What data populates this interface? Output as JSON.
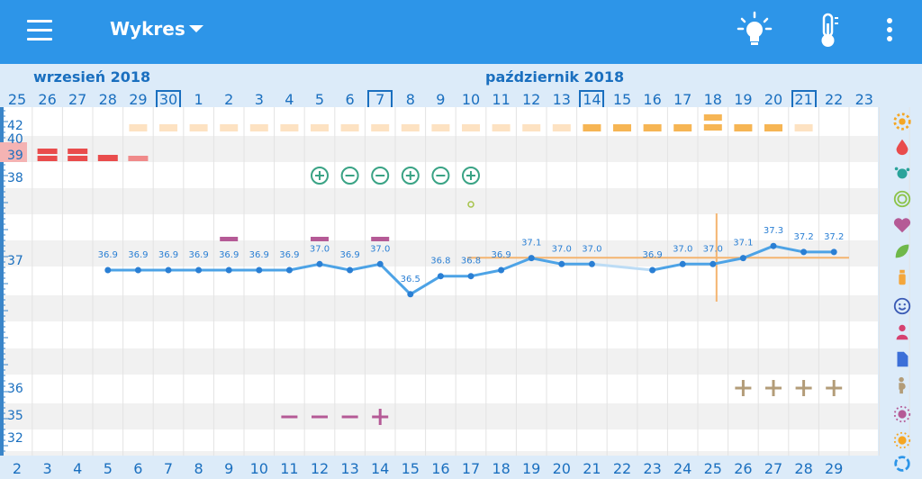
{
  "app_bar": {
    "title": "Wykres",
    "icons": [
      "menu-icon",
      "dropdown-caret-icon",
      "lightbulb-icon",
      "thermometer-icon",
      "more-vert-icon"
    ]
  },
  "chart": {
    "months": [
      {
        "label": "wrzesień 2018"
      },
      {
        "label": "październik 2018"
      }
    ],
    "dates_top": [
      "25",
      "26",
      "27",
      "28",
      "29",
      "30",
      "1",
      "2",
      "3",
      "4",
      "5",
      "6",
      "7",
      "8",
      "9",
      "10",
      "11",
      "12",
      "13",
      "14",
      "15",
      "16",
      "17",
      "18",
      "19",
      "20",
      "21",
      "22",
      "23"
    ],
    "boxed_dates": [
      "30",
      "7",
      "14",
      "21"
    ],
    "cycle_days_bottom": [
      "2",
      "3",
      "4",
      "5",
      "6",
      "7",
      "8",
      "9",
      "10",
      "11",
      "12",
      "13",
      "14",
      "15",
      "16",
      "17",
      "18",
      "19",
      "20",
      "21",
      "22",
      "23",
      "24",
      "25",
      "26",
      "27",
      "28",
      "29"
    ],
    "y_axis_labels": [
      "42",
      "40",
      "39",
      "38",
      "37",
      "36",
      "35",
      "32"
    ],
    "side_icons": [
      "flower-icon",
      "drop-icon",
      "splash-icon",
      "rings-icon",
      "heart-icon",
      "leaf-icon",
      "bottle-icon",
      "smiley-icon",
      "person-icon",
      "document-icon",
      "pregnant-icon",
      "virus-icon",
      "sun-icon",
      "cycle-icon"
    ],
    "colors": {
      "line": "#4da3e6",
      "point": "#2a7fd4",
      "coverline": "#f4b470",
      "bleeding": "#e94c4c",
      "mucus_light": "#fde2c2",
      "mucus_strong": "#f6b554",
      "test": "#3aa385",
      "lh": "#b55a96",
      "cross": "#b39c78"
    }
  },
  "chart_data": {
    "type": "line",
    "x": [
      "28",
      "29",
      "30",
      "1",
      "2",
      "3",
      "4",
      "5",
      "6",
      "7",
      "8",
      "9",
      "10",
      "11",
      "12",
      "13",
      "14",
      "16",
      "17",
      "18",
      "19",
      "20",
      "21",
      "22"
    ],
    "series": [
      {
        "values": [
          36.9,
          36.9,
          36.9,
          36.9,
          36.9,
          36.9,
          36.9,
          37.0,
          36.9,
          37.0,
          36.5,
          36.8,
          36.8,
          36.9,
          37.1,
          37.0,
          37.0,
          36.9,
          37.0,
          37.0,
          37.1,
          37.3,
          37.2,
          37.2
        ],
        "labels": [
          "36.9",
          "36.9",
          "36.9",
          "36.9",
          "36.9",
          "36.9",
          "36.9",
          "37.0",
          "36.9",
          "37.0",
          "36.5",
          "36.8",
          "36.8",
          "36.9",
          "37.1",
          "37.0",
          "37.0",
          "36.9",
          "37.0",
          "37.0",
          "37.1",
          "37.3",
          "37.2",
          "37.2"
        ]
      }
    ],
    "coverline": 37.0,
    "ylim": [
      32,
      42
    ],
    "grid": true
  }
}
